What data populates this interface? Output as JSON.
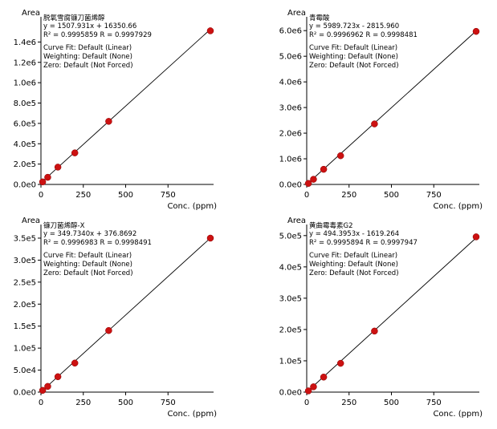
{
  "chart_data": [
    {
      "type": "scatter",
      "title": "脱氧雪腐镰刀菌烯醇",
      "equation": "y = 1507.931x + 16350.66",
      "r_stats": "R² = 0.9995859    R = 0.9997929",
      "curve_fit": "Curve Fit: Default (Linear)",
      "weighting": "Weighting: Default (None)",
      "zero": "Zero: Default (Not Forced)",
      "ylabel": "Area",
      "xlabel": "Conc. (ppm)",
      "xlim": [
        0,
        1000
      ],
      "ylim": [
        0,
        1600000
      ],
      "x_ticks": [
        "0",
        "250",
        "500",
        "750"
      ],
      "x_tick_values": [
        0,
        250,
        500,
        750
      ],
      "y_ticks": [
        "0.0e0",
        "2.0e5",
        "4.0e5",
        "6.0e5",
        "8.0e5",
        "1.0e6",
        "1.2e6",
        "1.4e6"
      ],
      "y_tick_values": [
        0,
        200000,
        400000,
        600000,
        800000,
        1000000,
        1200000,
        1400000
      ],
      "slope": 1507.931,
      "intercept": 16350.66,
      "x": [
        10,
        40,
        100,
        200,
        400,
        1000
      ],
      "y": [
        25000,
        70000,
        170000,
        310000,
        620000,
        1510000
      ]
    },
    {
      "type": "scatter",
      "title": "青霉酸",
      "equation": "y = 5989.723x - 2815.960",
      "r_stats": "R² = 0.9996962    R = 0.9998481",
      "curve_fit": "Curve Fit: Default (Linear)",
      "weighting": "Weighting: Default (None)",
      "zero": "Zero: Default (Not Forced)",
      "ylabel": "Area",
      "xlabel": "Conc. (ppm)",
      "xlim": [
        0,
        1000
      ],
      "ylim": [
        0,
        6350000
      ],
      "x_ticks": [
        "0",
        "250",
        "500",
        "750"
      ],
      "x_tick_values": [
        0,
        250,
        500,
        750
      ],
      "y_ticks": [
        "0.0e0",
        "1.0e6",
        "2.0e6",
        "3.0e6",
        "4.0e6",
        "5.0e6",
        "6.0e6"
      ],
      "y_tick_values": [
        0,
        1000000,
        2000000,
        3000000,
        4000000,
        5000000,
        6000000
      ],
      "slope": 5989.723,
      "intercept": -2815.96,
      "x": [
        10,
        40,
        100,
        200,
        400,
        1000
      ],
      "y": [
        40000,
        200000,
        590000,
        1120000,
        2360000,
        5970000
      ]
    },
    {
      "type": "scatter",
      "title": "镰刀菌烯醇-X",
      "equation": "y = 349.7340x + 376.8692",
      "r_stats": "R² = 0.9996983    R = 0.9998491",
      "curve_fit": "Curve Fit: Default (Linear)",
      "weighting": "Weighting: Default (None)",
      "zero": "Zero: Default (Not Forced)",
      "ylabel": "Area",
      "xlabel": "Conc. (ppm)",
      "xlim": [
        0,
        1000
      ],
      "ylim": [
        0,
        370000
      ],
      "x_ticks": [
        "0",
        "250",
        "500",
        "750"
      ],
      "x_tick_values": [
        0,
        250,
        500,
        750
      ],
      "y_ticks": [
        "0.0e0",
        "5.0e4",
        "1.0e5",
        "1.5e5",
        "2.0e5",
        "2.5e5",
        "3.0e5",
        "3.5e5"
      ],
      "y_tick_values": [
        0,
        50000,
        100000,
        150000,
        200000,
        250000,
        300000,
        350000
      ],
      "slope": 349.734,
      "intercept": 376.8692,
      "x": [
        10,
        40,
        100,
        200,
        400,
        1000
      ],
      "y": [
        4000,
        13000,
        35000,
        66000,
        140000,
        350000
      ]
    },
    {
      "type": "scatter",
      "title": "黄曲霉毒素G2",
      "equation": "y = 494.3953x - 1619.264",
      "r_stats": "R² = 0.9995894    R = 0.9997947",
      "curve_fit": "Curve Fit: Default (Linear)",
      "weighting": "Weighting: Default (None)",
      "zero": "Zero: Default (Not Forced)",
      "ylabel": "Area",
      "xlabel": "Conc. (ppm)",
      "xlim": [
        0,
        1000
      ],
      "ylim": [
        0,
        520000
      ],
      "x_ticks": [
        "0",
        "250",
        "500",
        "750"
      ],
      "x_tick_values": [
        0,
        250,
        500,
        750
      ],
      "y_ticks": [
        "0.0e0",
        "1.0e5",
        "2.0e5",
        "3.0e5",
        "4.0e5",
        "5.0e5"
      ],
      "y_tick_values": [
        0,
        100000,
        200000,
        300000,
        400000,
        500000
      ],
      "slope": 494.3953,
      "intercept": -1619.264,
      "x": [
        10,
        40,
        100,
        200,
        400,
        1000
      ],
      "y": [
        4000,
        17000,
        48000,
        92000,
        195000,
        496000
      ]
    }
  ],
  "colors": {
    "point": "#cc1111",
    "line": "#000000",
    "axis": "#000000"
  }
}
